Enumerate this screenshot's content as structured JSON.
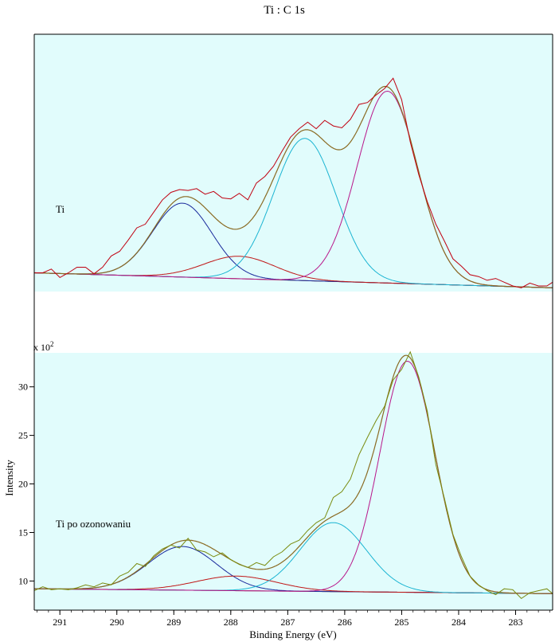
{
  "chart_data": {
    "type": "line",
    "title": "Ti : C 1s",
    "xlabel": "Binding Energy (eV)",
    "ylabel": "Intensity",
    "x_range": [
      291.45,
      282.35
    ],
    "x_ticks": [
      291,
      290,
      289,
      288,
      287,
      286,
      285,
      284,
      283
    ],
    "y_ticks": [
      10,
      15,
      20,
      25,
      30
    ],
    "y_multiplier": "x 10",
    "y_multiplier_exp": "2",
    "background_color": "#e1fcfc",
    "panels": [
      {
        "label": "Ti",
        "ylim": [
          6.0,
          33.5
        ],
        "baseline": {
          "start": 8.0,
          "end": 6.4
        },
        "components": [
          {
            "center": 288.85,
            "height": 7.9,
            "sigma": 0.52,
            "color": "#1a2a9c"
          },
          {
            "center": 287.85,
            "height": 2.4,
            "sigma": 0.62,
            "color": "#c01818"
          },
          {
            "center": 286.7,
            "height": 15.2,
            "sigma": 0.55,
            "color": "#1ab4d2"
          },
          {
            "center": 285.25,
            "height": 20.5,
            "sigma": 0.53,
            "color": "#b8168a"
          }
        ],
        "envelope_color": "#8a6a22",
        "raw_color": "#c00010",
        "raw": [
          [
            291.45,
            8.0
          ],
          [
            291.3,
            8.0
          ],
          [
            291.15,
            8.4
          ],
          [
            291.0,
            7.5
          ],
          [
            290.85,
            8.0
          ],
          [
            290.7,
            8.6
          ],
          [
            290.55,
            8.6
          ],
          [
            290.4,
            7.9
          ],
          [
            290.25,
            8.6
          ],
          [
            290.1,
            9.8
          ],
          [
            289.95,
            10.3
          ],
          [
            289.8,
            11.5
          ],
          [
            289.65,
            12.8
          ],
          [
            289.5,
            13.2
          ],
          [
            289.35,
            14.5
          ],
          [
            289.2,
            15.8
          ],
          [
            289.05,
            16.6
          ],
          [
            288.9,
            16.9
          ],
          [
            288.75,
            16.8
          ],
          [
            288.6,
            17.0
          ],
          [
            288.45,
            16.4
          ],
          [
            288.3,
            16.7
          ],
          [
            288.15,
            16.0
          ],
          [
            288.0,
            15.9
          ],
          [
            287.85,
            16.5
          ],
          [
            287.7,
            15.8
          ],
          [
            287.55,
            17.6
          ],
          [
            287.4,
            18.3
          ],
          [
            287.25,
            19.4
          ],
          [
            287.1,
            21.0
          ],
          [
            286.95,
            22.5
          ],
          [
            286.8,
            23.4
          ],
          [
            286.65,
            24.1
          ],
          [
            286.5,
            23.4
          ],
          [
            286.35,
            24.3
          ],
          [
            286.2,
            23.7
          ],
          [
            286.05,
            23.5
          ],
          [
            285.9,
            24.4
          ],
          [
            285.75,
            26.0
          ],
          [
            285.6,
            26.2
          ],
          [
            285.45,
            27.0
          ],
          [
            285.3,
            27.7
          ],
          [
            285.15,
            28.8
          ],
          [
            285.0,
            26.5
          ],
          [
            284.85,
            22.0
          ],
          [
            284.7,
            18.5
          ],
          [
            284.55,
            15.6
          ],
          [
            284.4,
            13.2
          ],
          [
            284.25,
            11.4
          ],
          [
            284.1,
            9.5
          ],
          [
            283.95,
            8.7
          ],
          [
            283.8,
            7.8
          ],
          [
            283.65,
            7.6
          ],
          [
            283.5,
            7.2
          ],
          [
            283.35,
            7.4
          ],
          [
            283.2,
            7.0
          ],
          [
            283.05,
            6.6
          ],
          [
            282.9,
            6.4
          ],
          [
            282.75,
            6.9
          ],
          [
            282.6,
            6.6
          ],
          [
            282.45,
            6.6
          ],
          [
            282.35,
            7.0
          ]
        ]
      },
      {
        "label": "Ti po ozonowaniu",
        "ylim": [
          7.0,
          33.5
        ],
        "baseline": {
          "start": 9.2,
          "end": 8.7
        },
        "components": [
          {
            "center": 288.85,
            "height": 4.5,
            "sigma": 0.6,
            "color": "#1a2a9c"
          },
          {
            "center": 287.9,
            "height": 1.5,
            "sigma": 0.7,
            "color": "#c01818"
          },
          {
            "center": 286.2,
            "height": 7.1,
            "sigma": 0.58,
            "color": "#1ab4d2"
          },
          {
            "center": 284.9,
            "height": 23.8,
            "sigma": 0.48,
            "color": "#b8168a"
          }
        ],
        "envelope_color": "#8a6a22",
        "raw_color": "#7a8c10",
        "raw": [
          [
            291.45,
            9.0
          ],
          [
            291.3,
            9.4
          ],
          [
            291.15,
            9.1
          ],
          [
            291.0,
            9.2
          ],
          [
            290.85,
            9.1
          ],
          [
            290.7,
            9.3
          ],
          [
            290.55,
            9.6
          ],
          [
            290.4,
            9.4
          ],
          [
            290.25,
            9.8
          ],
          [
            290.1,
            9.6
          ],
          [
            289.95,
            10.5
          ],
          [
            289.8,
            10.9
          ],
          [
            289.65,
            11.8
          ],
          [
            289.5,
            11.5
          ],
          [
            289.35,
            12.6
          ],
          [
            289.2,
            13.3
          ],
          [
            289.05,
            13.7
          ],
          [
            288.9,
            13.4
          ],
          [
            288.75,
            14.4
          ],
          [
            288.6,
            13.2
          ],
          [
            288.45,
            13.0
          ],
          [
            288.3,
            12.5
          ],
          [
            288.15,
            12.9
          ],
          [
            288.0,
            12.2
          ],
          [
            287.85,
            11.7
          ],
          [
            287.7,
            11.4
          ],
          [
            287.55,
            11.9
          ],
          [
            287.4,
            11.6
          ],
          [
            287.25,
            12.5
          ],
          [
            287.1,
            13.0
          ],
          [
            286.95,
            13.8
          ],
          [
            286.8,
            14.2
          ],
          [
            286.65,
            15.2
          ],
          [
            286.5,
            16.0
          ],
          [
            286.35,
            16.5
          ],
          [
            286.2,
            18.6
          ],
          [
            286.05,
            19.2
          ],
          [
            285.9,
            20.5
          ],
          [
            285.75,
            23.0
          ],
          [
            285.6,
            24.8
          ],
          [
            285.45,
            26.5
          ],
          [
            285.3,
            28.0
          ],
          [
            285.15,
            30.7
          ],
          [
            285.0,
            31.8
          ],
          [
            284.85,
            33.6
          ],
          [
            284.7,
            31.0
          ],
          [
            284.55,
            27.5
          ],
          [
            284.4,
            22.0
          ],
          [
            284.25,
            18.5
          ],
          [
            284.1,
            14.8
          ],
          [
            283.95,
            12.5
          ],
          [
            283.8,
            10.5
          ],
          [
            283.65,
            9.6
          ],
          [
            283.5,
            9.0
          ],
          [
            283.35,
            8.6
          ],
          [
            283.2,
            9.2
          ],
          [
            283.05,
            9.1
          ],
          [
            282.9,
            8.2
          ],
          [
            282.75,
            8.8
          ],
          [
            282.6,
            9.0
          ],
          [
            282.45,
            9.2
          ],
          [
            282.35,
            8.7
          ]
        ]
      }
    ]
  }
}
